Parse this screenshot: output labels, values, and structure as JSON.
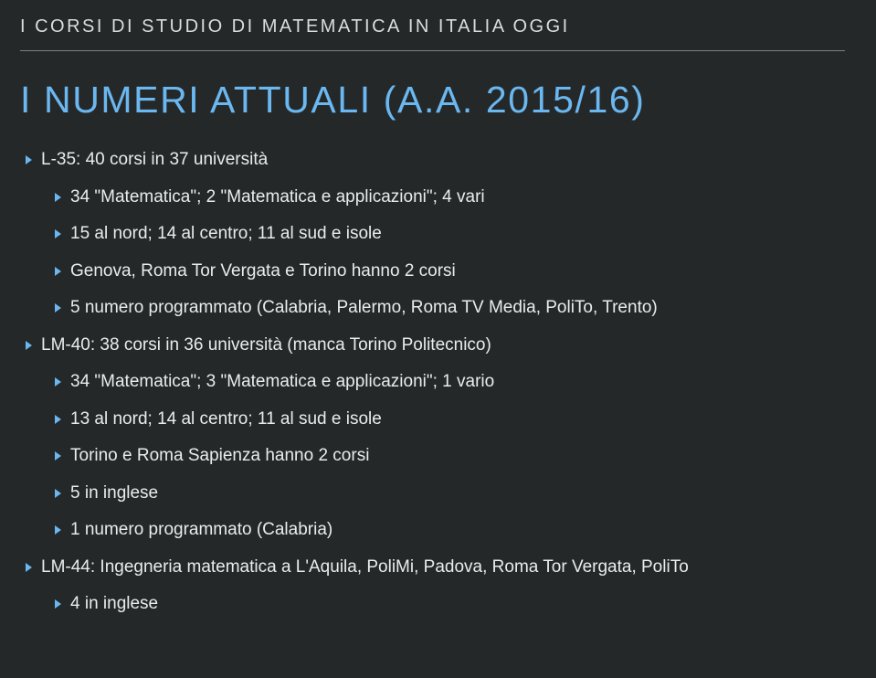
{
  "breadcrumb": "I CORSI DI STUDIO DI MATEMATICA IN ITALIA OGGI",
  "title": "I NUMERI ATTUALI (A.A. 2015/16)",
  "colors": {
    "background": "#242829",
    "accent": "#6bb7f0",
    "text": "#eaecec",
    "breadcrumb_text": "#dadcdd",
    "rule": "#7d8182"
  },
  "typography": {
    "breadcrumb_fontsize": 20,
    "title_fontsize": 41,
    "body_fontsize": 19,
    "letter_spacing_breadcrumb": 2.5,
    "letter_spacing_title": 1.6,
    "body_weight": 300
  },
  "items": [
    {
      "level": 0,
      "text": "L-35: 40 corsi in 37 università"
    },
    {
      "level": 1,
      "text": "34 \"Matematica\"; 2 \"Matematica e applicazioni\"; 4 vari"
    },
    {
      "level": 1,
      "text": "15 al nord; 14 al centro; 11 al sud e isole"
    },
    {
      "level": 1,
      "text": "Genova, Roma Tor Vergata e Torino hanno 2 corsi"
    },
    {
      "level": 1,
      "text": "5 numero programmato (Calabria, Palermo, Roma TV Media, PoliTo, Trento)"
    },
    {
      "level": 0,
      "text": "LM-40: 38 corsi in 36 università (manca Torino Politecnico)"
    },
    {
      "level": 1,
      "text": "34 \"Matematica\"; 3 \"Matematica e applicazioni\"; 1 vario"
    },
    {
      "level": 1,
      "text": "13 al nord; 14 al centro; 11 al sud e isole"
    },
    {
      "level": 1,
      "text": "Torino e Roma Sapienza hanno 2 corsi"
    },
    {
      "level": 1,
      "text": "5 in inglese"
    },
    {
      "level": 1,
      "text": "1 numero programmato (Calabria)"
    },
    {
      "level": 0,
      "text": "LM-44: Ingegneria matematica a L'Aquila, PoliMi, Padova, Roma Tor Vergata, PoliTo"
    },
    {
      "level": 1,
      "text": "4 in inglese"
    }
  ]
}
